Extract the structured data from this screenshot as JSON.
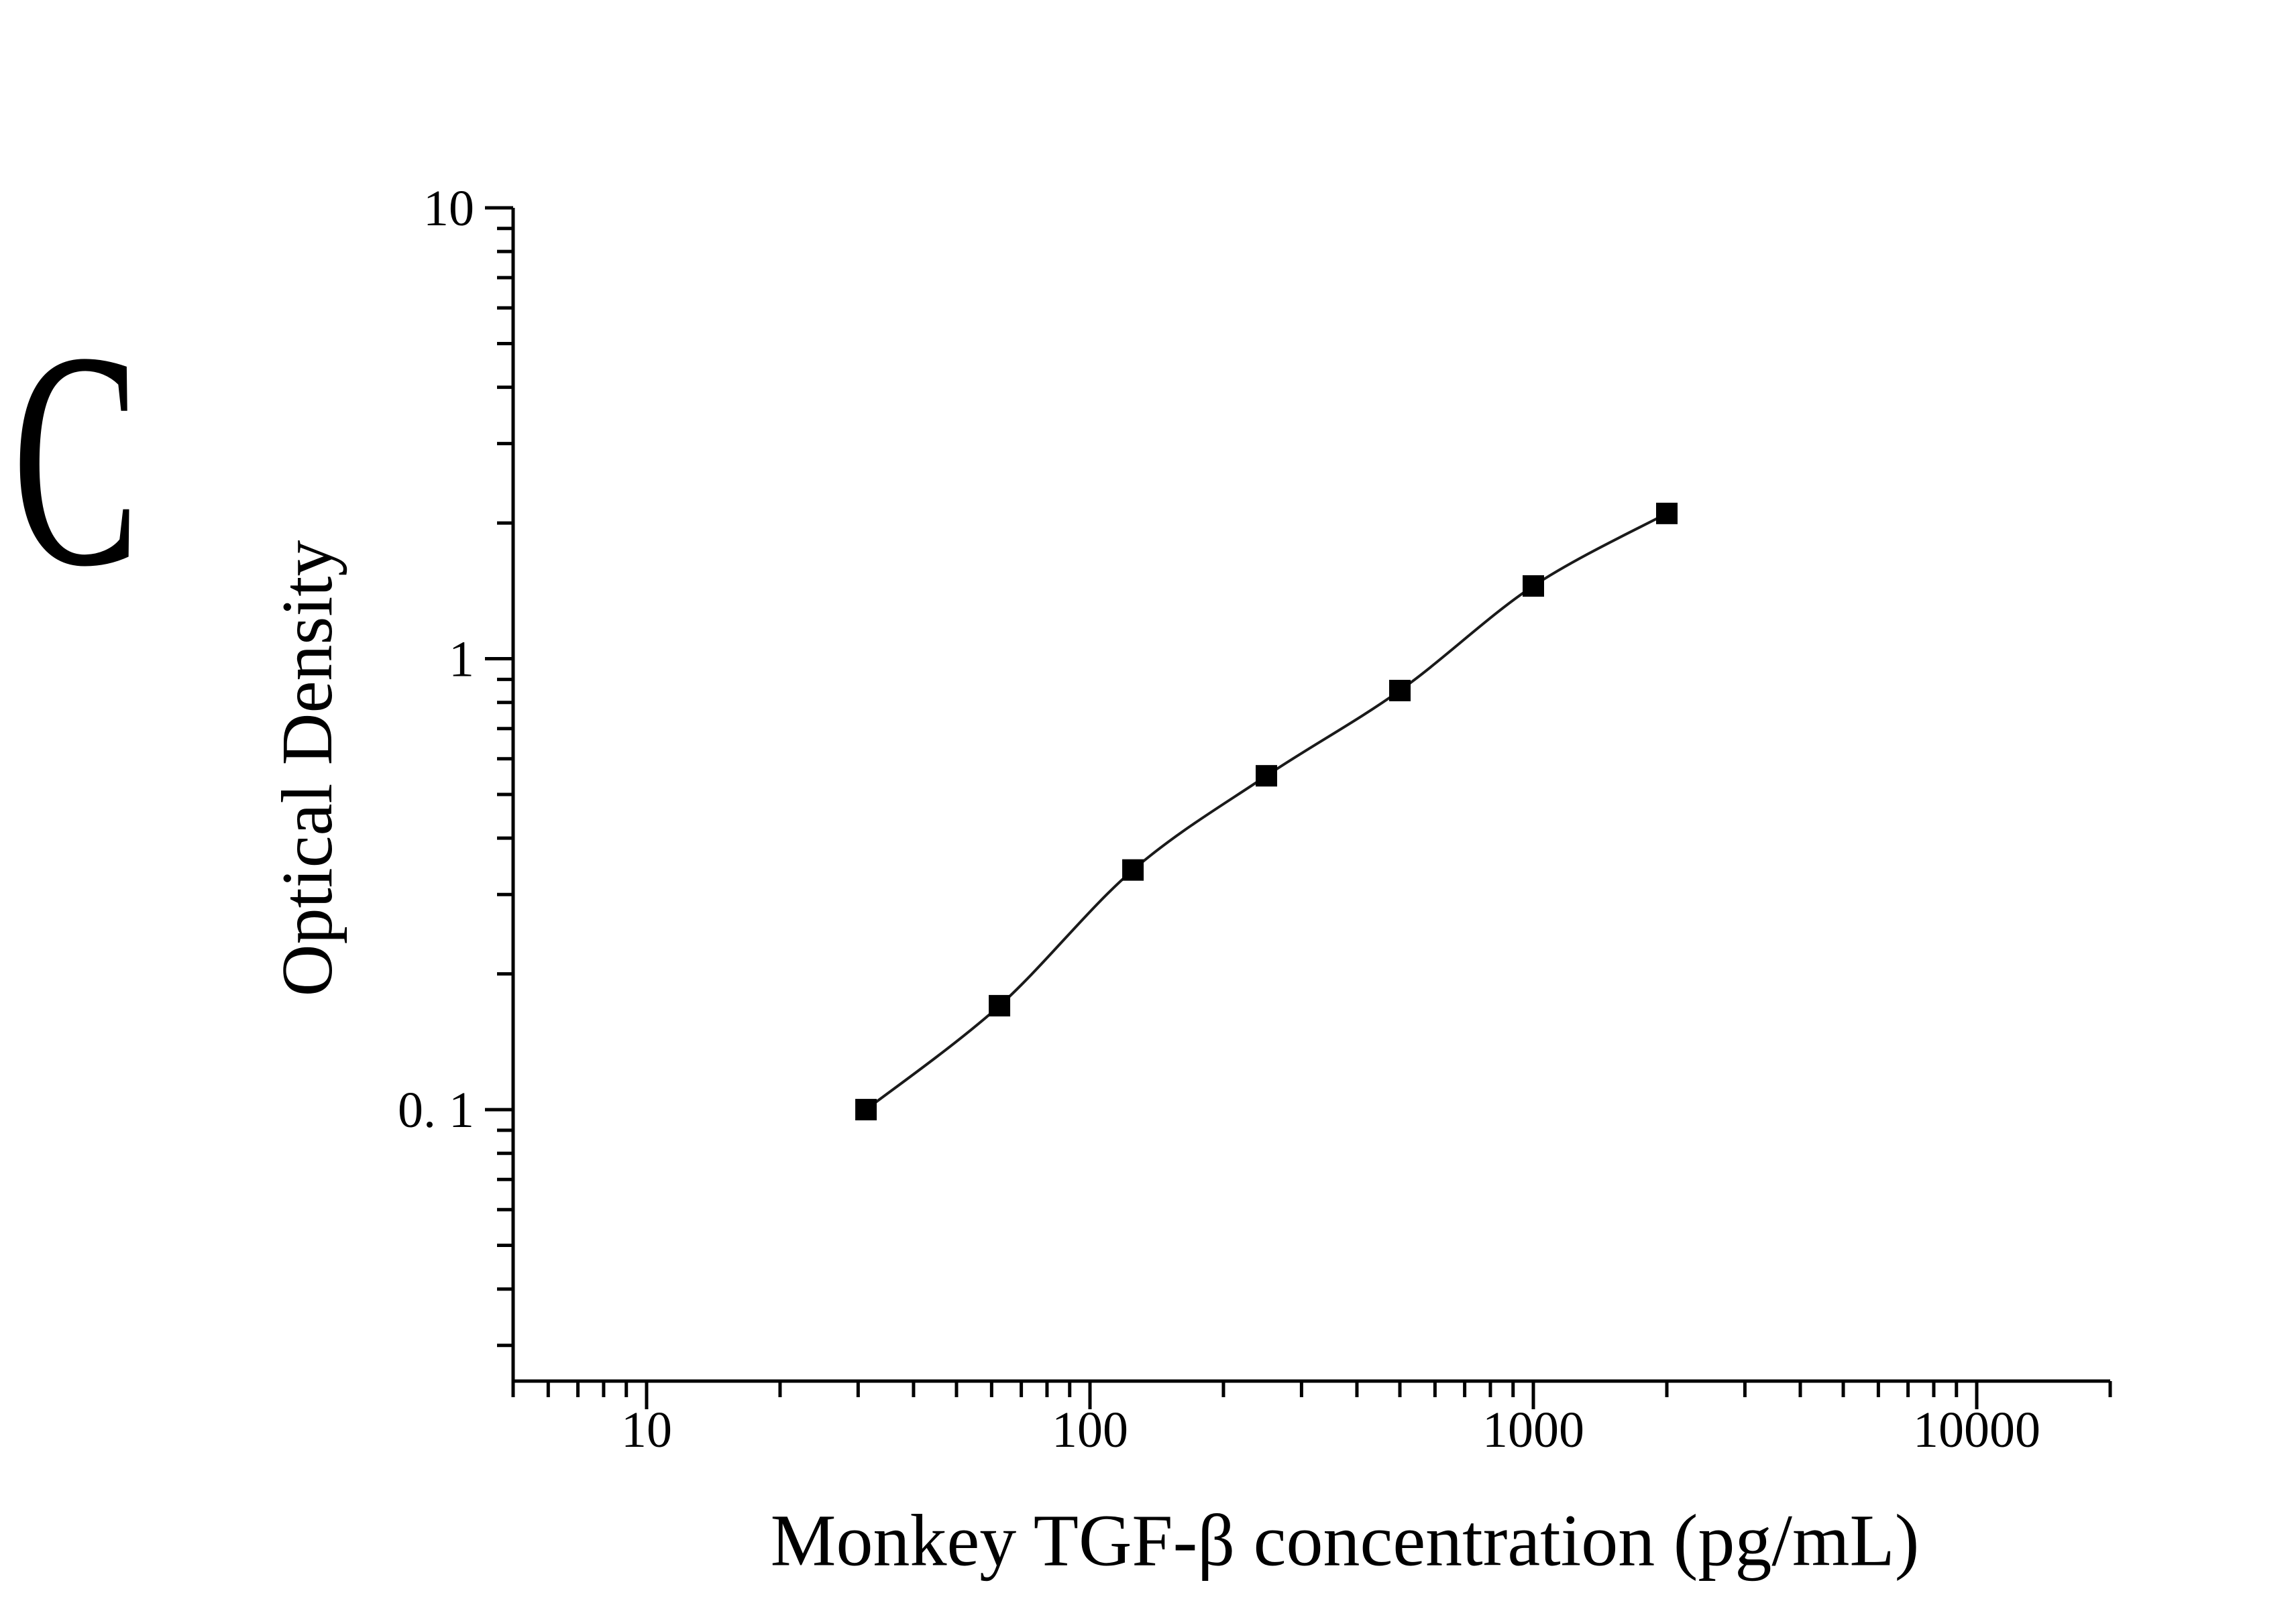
{
  "page": {
    "background": "#ffffff",
    "panel_label": "C"
  },
  "chart_data": {
    "type": "scatter",
    "title": "",
    "xlabel": "Monkey TGF-β concentration (pg/mL)",
    "ylabel": "Optical Density",
    "xscale": "log",
    "yscale": "log",
    "xlim": [
      5,
      20000
    ],
    "ylim": [
      0.025,
      10
    ],
    "x": [
      31.25,
      62.5,
      125,
      250,
      500,
      1000,
      2000
    ],
    "y": [
      0.1,
      0.17,
      0.34,
      0.55,
      0.85,
      1.45,
      2.1
    ],
    "x_major_ticks": [
      10,
      100,
      1000,
      10000
    ],
    "x_tick_labels": [
      "10",
      "100",
      "1000",
      "10000"
    ],
    "y_major_ticks": [
      0.1,
      1,
      10
    ],
    "y_tick_labels": [
      "0. 1",
      "1",
      "10"
    ],
    "marker": "filled-square",
    "curve": "smooth-line",
    "grid": false,
    "legend": "none",
    "colors": {
      "points": "#000000",
      "line": "#1a1a1a",
      "axis": "#000000",
      "text": "#000000"
    }
  }
}
